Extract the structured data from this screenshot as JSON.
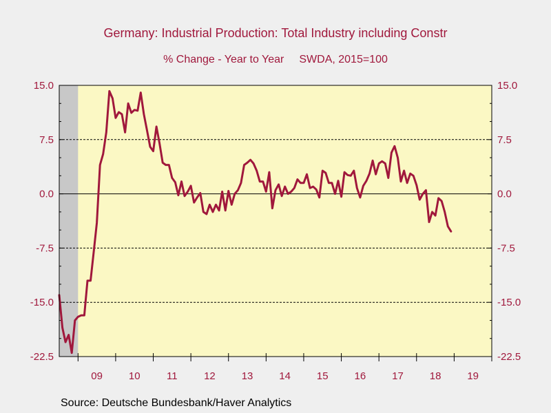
{
  "title": "Germany: Industrial Production: Total Industry including Constr",
  "subtitle_left": "% Change - Year to Year",
  "subtitle_right": "SWDA, 2015=100",
  "source": "Source:  Deutsche Bundesbank/Haver Analytics",
  "colors": {
    "background": "#efefef",
    "plot_background": "#fbf8c4",
    "recession_shade": "#c8c8c8",
    "line": "#a0183c",
    "text": "#a0183c"
  },
  "chart_data": {
    "type": "line",
    "title": "Germany: Industrial Production: Total Industry including Constr",
    "subtitle": "% Change - Year to Year    SWDA, 2015=100",
    "xlabel": "",
    "ylabel": "",
    "ylim": [
      -22.5,
      15.0
    ],
    "yticks": [
      15.0,
      7.5,
      0.0,
      -7.5,
      -15.0,
      -22.5
    ],
    "ytick_labels": [
      "15.0",
      "7.5",
      "0.0",
      "-7.5",
      "-15.0",
      "-22.5"
    ],
    "year_labels": [
      "09",
      "10",
      "11",
      "12",
      "13",
      "14",
      "15",
      "16",
      "17",
      "18",
      "19"
    ],
    "x_start_year": 2008.5,
    "x_end_year": 2020.0,
    "grid": "dashed horizontal lines at ±7.5 and ±15.0, solid zero line",
    "shaded_recession": [
      2008.5,
      2009.0
    ],
    "legend": "none",
    "series": [
      {
        "start": "2008-07",
        "frequency": "monthly",
        "values": [
          -14.0,
          -18.5,
          -20.5,
          -19.5,
          -22.0,
          -17.5,
          -17.0,
          -16.8,
          -16.8,
          -12.0,
          -12.0,
          -8.0,
          -4.0,
          4.0,
          5.5,
          8.5,
          14.2,
          13.2,
          10.5,
          11.3,
          11.0,
          8.5,
          12.5,
          11.2,
          11.6,
          11.5,
          14.0,
          11.0,
          8.8,
          6.5,
          5.9,
          9.3,
          7.0,
          4.3,
          4.0,
          4.0,
          2.2,
          1.6,
          -0.2,
          1.7,
          -0.3,
          0.3,
          1.1,
          -1.2,
          -0.5,
          0.1,
          -2.5,
          -2.8,
          -1.5,
          -2.5,
          -1.5,
          -2.3,
          0.3,
          -2.3,
          0.4,
          -1.5,
          0.0,
          0.5,
          1.5,
          4.0,
          4.3,
          4.7,
          4.2,
          3.2,
          1.7,
          1.7,
          0.3,
          3.0,
          -2.0,
          0.5,
          1.3,
          -0.3,
          1.0,
          0.0,
          0.3,
          0.8,
          2.0,
          1.5,
          1.5,
          2.7,
          0.8,
          1.0,
          0.6,
          -0.5,
          3.2,
          2.9,
          1.5,
          1.5,
          0.0,
          1.8,
          -0.4,
          3.0,
          2.6,
          2.5,
          3.2,
          0.8,
          -0.5,
          1.1,
          1.8,
          2.8,
          4.6,
          2.7,
          4.2,
          4.5,
          4.2,
          2.2,
          5.7,
          6.6,
          5.0,
          1.7,
          3.2,
          1.5,
          2.8,
          2.5,
          1.2,
          -0.8,
          0.0,
          0.5,
          -3.9,
          -2.5,
          -3.0,
          -0.6,
          -1.0,
          -2.5,
          -4.5,
          -5.2
        ]
      }
    ]
  }
}
